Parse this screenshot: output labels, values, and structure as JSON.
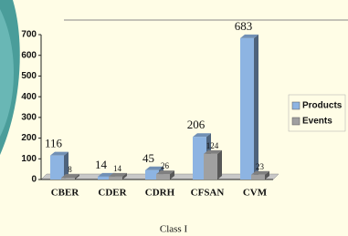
{
  "chart_data": {
    "type": "bar",
    "x_label": "Class I",
    "categories": [
      "CBER",
      "CDER",
      "CDRH",
      "CFSAN",
      "CVM"
    ],
    "series": [
      {
        "name": "Products",
        "color": "#8db4e2",
        "values": [
          116,
          14,
          45,
          206,
          683
        ]
      },
      {
        "name": "Events",
        "color": "#a0a0a0",
        "values": [
          8,
          14,
          26,
          124,
          23
        ]
      }
    ],
    "ylim": [
      0,
      700
    ],
    "yticks": [
      0,
      100,
      200,
      300,
      400,
      500,
      600,
      700
    ],
    "grid": false,
    "legend": "right"
  }
}
